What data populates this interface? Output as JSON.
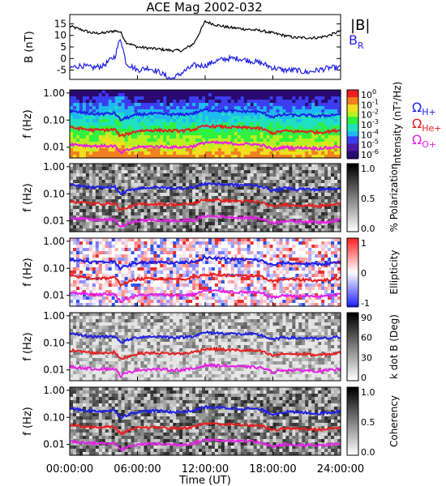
{
  "title": "ACE Mag 2002-032",
  "x_axis": {
    "label": "Time (UT)",
    "ticks": [
      "00:00:00",
      "06:00:00",
      "12:00:00",
      "18:00:00",
      "24:00:00"
    ],
    "tick_hours": [
      0,
      6,
      12,
      18,
      24
    ],
    "range_hours": [
      0,
      24
    ]
  },
  "colors": {
    "total_b": "#000000",
    "b_r": "#1f1fe6",
    "h_plus": "#1f1fe6",
    "he_plus": "#e61f1f",
    "o_plus": "#e61fe6"
  },
  "panels": {
    "field": {
      "ylabel": "B (nT)",
      "ytick_labels": [
        "15",
        "10",
        "5",
        "0",
        "-5"
      ],
      "legend_total": "|B|",
      "legend_component": "B",
      "legend_component_sub": "R"
    },
    "spectral": {
      "ylabel": "f (Hz)",
      "freq_tick_labels": [
        "1.00",
        "0.10",
        "0.01"
      ],
      "freq_ticks": [
        1.0,
        0.1,
        0.01
      ],
      "freq_range_hz": [
        0.004,
        1.3
      ],
      "gyro_legend": [
        {
          "symbol": "Ω",
          "sub": "H+"
        },
        {
          "symbol": "Ω",
          "sub": "He+"
        },
        {
          "symbol": "Ω",
          "sub": "O+"
        }
      ]
    },
    "intensity": {
      "colorbar_label": "Intensity (nT²/Hz)",
      "colorbar_ticks": [
        "10",
        "10",
        "10",
        "10",
        "10",
        "10",
        "10"
      ],
      "colorbar_exponents": [
        "0",
        "-1",
        "-2",
        "-3",
        "-4",
        "-5",
        "-6"
      ]
    },
    "polarization": {
      "colorbar_label": "% Polarization",
      "colorbar_ticks": [
        "1.0",
        "0.5",
        "0.0"
      ]
    },
    "ellipticity": {
      "colorbar_label": "Ellipticity",
      "colorbar_ticks": [
        "1",
        "0",
        "-1"
      ]
    },
    "kdotb": {
      "colorbar_label": "k dot B (Deg)",
      "colorbar_ticks": [
        "90",
        "60",
        "30",
        "0"
      ]
    },
    "coherency": {
      "colorbar_label": "Coherency",
      "colorbar_ticks": [
        "1.0",
        "0.5",
        "0.0"
      ]
    }
  },
  "chart_data": [
    {
      "type": "line",
      "title": "ACE Mag 2002-032",
      "xlabel": "Time (UT)",
      "ylabel": "B (nT)",
      "ylim": [
        -9,
        19
      ],
      "x": [
        0,
        1,
        2,
        3,
        4,
        4.5,
        5,
        6,
        7,
        8,
        9,
        10,
        11,
        12,
        13,
        14,
        15,
        16,
        17,
        18,
        19,
        20,
        21,
        22,
        23,
        24
      ],
      "series": [
        {
          "name": "|B|",
          "values": [
            14,
            12.5,
            11,
            11,
            12,
            11.5,
            7,
            5,
            4.5,
            4,
            3.5,
            3.5,
            6.5,
            16,
            14.5,
            13.5,
            13,
            12.5,
            12,
            11,
            10,
            9,
            9,
            9,
            10,
            12
          ]
        },
        {
          "name": "B_R",
          "values": [
            -4,
            -3,
            -4,
            -3,
            1,
            9,
            -2,
            -5,
            -4,
            -6,
            -9,
            -6,
            -3,
            -3,
            -1,
            0,
            0,
            -1,
            -2,
            -4,
            -5,
            -5,
            -6,
            -5,
            -4,
            -4
          ]
        }
      ]
    },
    {
      "type": "line",
      "ylabel": "f (Hz)",
      "yscale": "log",
      "ylim": [
        0.004,
        1.3
      ],
      "x": [
        0,
        1,
        2,
        3,
        4,
        4.5,
        5,
        6,
        7,
        8,
        9,
        10,
        11,
        12,
        13,
        14,
        15,
        16,
        17,
        18,
        19,
        20,
        21,
        22,
        23,
        24
      ],
      "series": [
        {
          "name": "Ω H+",
          "values": [
            0.21,
            0.19,
            0.17,
            0.17,
            0.18,
            0.1,
            0.12,
            0.16,
            0.17,
            0.17,
            0.16,
            0.16,
            0.18,
            0.24,
            0.23,
            0.22,
            0.21,
            0.21,
            0.19,
            0.13,
            0.16,
            0.15,
            0.15,
            0.14,
            0.15,
            0.17
          ]
        },
        {
          "name": "Ω He+",
          "values": [
            0.053,
            0.048,
            0.043,
            0.043,
            0.045,
            0.025,
            0.03,
            0.04,
            0.042,
            0.042,
            0.04,
            0.04,
            0.045,
            0.06,
            0.058,
            0.055,
            0.053,
            0.052,
            0.048,
            0.033,
            0.04,
            0.038,
            0.038,
            0.035,
            0.038,
            0.043
          ]
        },
        {
          "name": "Ω O+",
          "values": [
            0.013,
            0.012,
            0.011,
            0.011,
            0.011,
            0.006,
            0.0075,
            0.01,
            0.0105,
            0.0105,
            0.01,
            0.01,
            0.011,
            0.015,
            0.0145,
            0.014,
            0.013,
            0.013,
            0.012,
            0.0083,
            0.01,
            0.0095,
            0.0095,
            0.009,
            0.0095,
            0.011
          ]
        }
      ]
    }
  ]
}
